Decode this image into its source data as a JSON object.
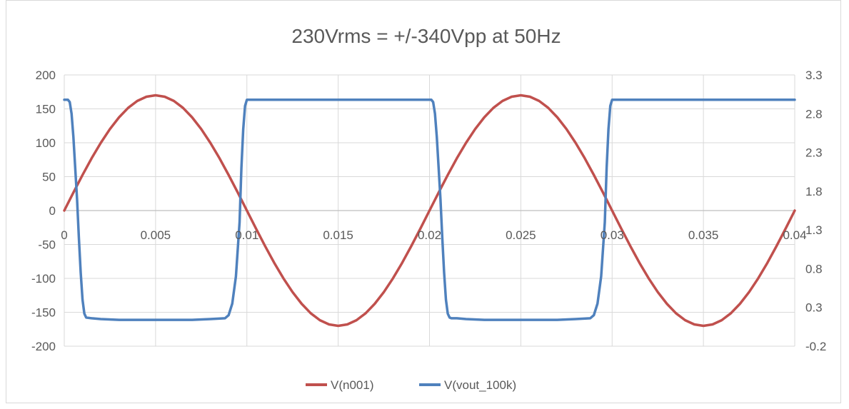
{
  "chart_data": {
    "type": "line",
    "title": "230Vrms = +/-340Vpp at 50Hz",
    "xlabel": "",
    "ylabel": "",
    "y2label": "",
    "grid": true,
    "legend_placement": "bottom",
    "x_ticks": [
      "0",
      "0.005",
      "0.01",
      "0.015",
      "0.02",
      "0.025",
      "0.03",
      "0.035",
      "0.04"
    ],
    "xlim": [
      0,
      0.04
    ],
    "y_ticks": [
      "200",
      "150",
      "100",
      "50",
      "0",
      "-50",
      "-100",
      "-150",
      "-200"
    ],
    "ylim": [
      -200,
      200
    ],
    "y2_ticks": [
      "3.3",
      "2.8",
      "2.3",
      "1.8",
      "1.3",
      "0.8",
      "0.3",
      "-0.2"
    ],
    "y2lim": [
      -0.2,
      3.3
    ],
    "series": [
      {
        "name": "V(n001)",
        "axis": "primary",
        "color": "#c0504d",
        "x": [
          0,
          0.0005,
          0.001,
          0.0015,
          0.002,
          0.0025,
          0.003,
          0.0035,
          0.004,
          0.0045,
          0.005,
          0.0055,
          0.006,
          0.0065,
          0.007,
          0.0075,
          0.008,
          0.0085,
          0.009,
          0.0095,
          0.01,
          0.0105,
          0.011,
          0.0115,
          0.012,
          0.0125,
          0.013,
          0.0135,
          0.014,
          0.0145,
          0.015,
          0.0155,
          0.016,
          0.0165,
          0.017,
          0.0175,
          0.018,
          0.0185,
          0.019,
          0.0195,
          0.02,
          0.0205,
          0.021,
          0.0215,
          0.022,
          0.0225,
          0.023,
          0.0235,
          0.024,
          0.0245,
          0.025,
          0.0255,
          0.026,
          0.0265,
          0.027,
          0.0275,
          0.028,
          0.0285,
          0.029,
          0.0295,
          0.03,
          0.0305,
          0.031,
          0.0315,
          0.032,
          0.0325,
          0.033,
          0.0335,
          0.034,
          0.0345,
          0.035,
          0.0355,
          0.036,
          0.0365,
          0.037,
          0.0375,
          0.038,
          0.0385,
          0.039,
          0.0395,
          0.04
        ],
        "values": [
          0,
          26.6,
          52.5,
          77.2,
          99.9,
          120.2,
          137.5,
          151.5,
          161.7,
          167.9,
          170,
          167.9,
          161.7,
          151.5,
          137.5,
          120.2,
          99.9,
          77.2,
          52.5,
          26.6,
          0,
          -26.6,
          -52.5,
          -77.2,
          -99.9,
          -120.2,
          -137.5,
          -151.5,
          -161.7,
          -167.9,
          -170,
          -167.9,
          -161.7,
          -151.5,
          -137.5,
          -120.2,
          -99.9,
          -77.2,
          -52.5,
          -26.6,
          0,
          26.6,
          52.5,
          77.2,
          99.9,
          120.2,
          137.5,
          151.5,
          161.7,
          167.9,
          170,
          167.9,
          161.7,
          151.5,
          137.5,
          120.2,
          99.9,
          77.2,
          52.5,
          26.6,
          0,
          -26.6,
          -52.5,
          -77.2,
          -99.9,
          -120.2,
          -137.5,
          -151.5,
          -161.7,
          -167.9,
          -170,
          -167.9,
          -161.7,
          -151.5,
          -137.5,
          -120.2,
          -99.9,
          -77.2,
          -52.5,
          -26.6,
          0
        ]
      },
      {
        "name": "V(vout_100k)",
        "axis": "secondary",
        "color": "#4f81bd",
        "x": [
          0,
          0.0002,
          0.0003,
          0.0004,
          0.0005,
          0.0006,
          0.0007,
          0.0008,
          0.0009,
          0.001,
          0.0011,
          0.0012,
          0.0015,
          0.002,
          0.003,
          0.004,
          0.005,
          0.006,
          0.007,
          0.008,
          0.0088,
          0.009,
          0.0092,
          0.0094,
          0.0096,
          0.0097,
          0.0098,
          0.0099,
          0.01,
          0.011,
          0.012,
          0.013,
          0.014,
          0.015,
          0.016,
          0.017,
          0.018,
          0.019,
          0.0201,
          0.0202,
          0.0203,
          0.0204,
          0.0205,
          0.0206,
          0.0207,
          0.0208,
          0.0209,
          0.021,
          0.0211,
          0.0212,
          0.0215,
          0.022,
          0.023,
          0.024,
          0.025,
          0.026,
          0.027,
          0.028,
          0.0288,
          0.029,
          0.0292,
          0.0294,
          0.0296,
          0.0297,
          0.0298,
          0.0299,
          0.03,
          0.031,
          0.032,
          0.033,
          0.034,
          0.035,
          0.036,
          0.037,
          0.038,
          0.039,
          0.04
        ],
        "values": [
          2.98,
          2.98,
          2.95,
          2.8,
          2.5,
          2.1,
          1.7,
          1.2,
          0.75,
          0.4,
          0.22,
          0.17,
          0.16,
          0.15,
          0.14,
          0.14,
          0.14,
          0.14,
          0.14,
          0.15,
          0.16,
          0.2,
          0.35,
          0.7,
          1.4,
          2.1,
          2.6,
          2.9,
          2.98,
          2.98,
          2.98,
          2.98,
          2.98,
          2.98,
          2.98,
          2.98,
          2.98,
          2.98,
          2.98,
          2.95,
          2.8,
          2.5,
          2.1,
          1.7,
          1.2,
          0.75,
          0.4,
          0.22,
          0.17,
          0.16,
          0.16,
          0.15,
          0.14,
          0.14,
          0.14,
          0.14,
          0.14,
          0.15,
          0.16,
          0.2,
          0.35,
          0.7,
          1.4,
          2.1,
          2.6,
          2.9,
          2.98,
          2.98,
          2.98,
          2.98,
          2.98,
          2.98,
          2.98,
          2.98,
          2.98,
          2.98,
          2.98
        ]
      }
    ]
  }
}
